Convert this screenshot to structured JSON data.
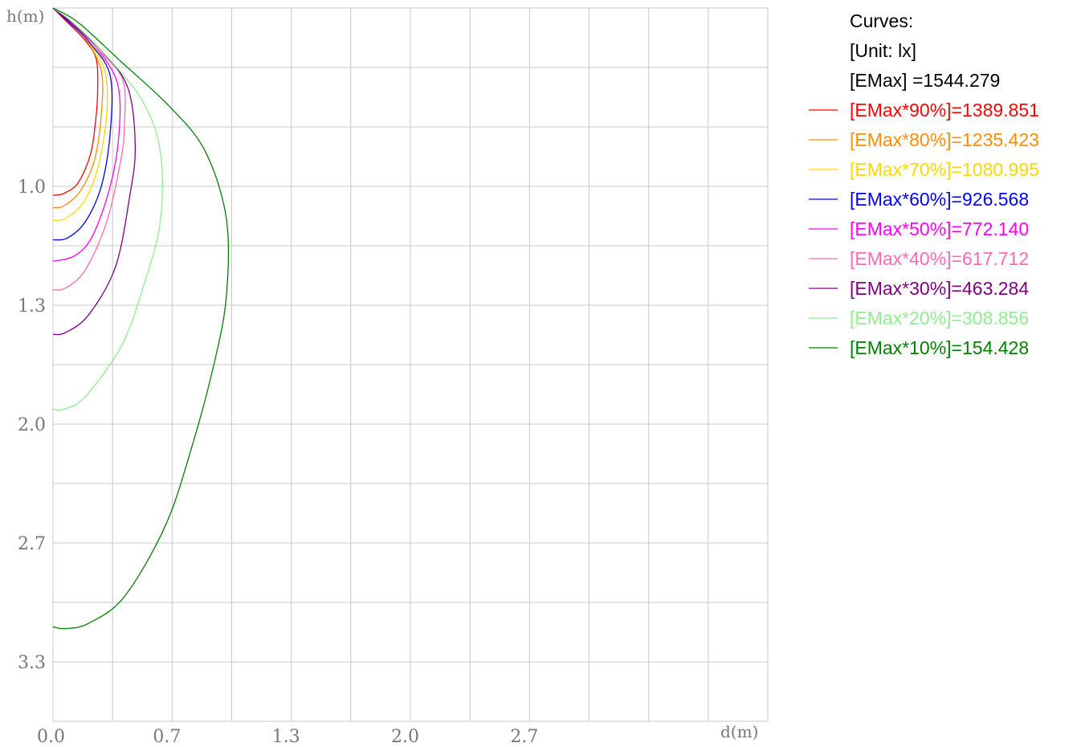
{
  "chart_data": {
    "type": "line",
    "xlabel": "d(m)",
    "ylabel": "h(m)",
    "xlim": [
      0,
      4.0
    ],
    "ylim": [
      0,
      4.0
    ],
    "x_ticks": [
      "0.0",
      "0.7",
      "1.3",
      "2.0",
      "2.7"
    ],
    "y_ticks": [
      "1.0",
      "1.3",
      "2.0",
      "2.7",
      "3.3"
    ],
    "grid": true,
    "legend_placement": "right",
    "legend": {
      "title": "Curves:",
      "unit": "[Unit: lx]",
      "emax": "[EMax]   =1544.279"
    },
    "series": [
      {
        "name": "[EMax*90%]=1389.851",
        "color": "#ff0000",
        "points": [
          [
            0.0,
            0.0
          ],
          [
            0.07,
            0.07
          ],
          [
            0.17,
            0.17
          ],
          [
            0.24,
            0.28
          ],
          [
            0.25,
            0.45
          ],
          [
            0.24,
            0.62
          ],
          [
            0.21,
            0.82
          ],
          [
            0.14,
            0.98
          ],
          [
            0.06,
            1.04
          ],
          [
            0.0,
            1.05
          ]
        ]
      },
      {
        "name": "[EMax*80%]=1235.423",
        "color": "#ff8c00",
        "points": [
          [
            0.0,
            0.0
          ],
          [
            0.08,
            0.07
          ],
          [
            0.18,
            0.17
          ],
          [
            0.27,
            0.35
          ],
          [
            0.27,
            0.6
          ],
          [
            0.23,
            0.86
          ],
          [
            0.15,
            1.03
          ],
          [
            0.06,
            1.11
          ],
          [
            0.0,
            1.12
          ]
        ]
      },
      {
        "name": "[EMax*70%]=1080.995",
        "color": "#ffd700",
        "points": [
          [
            0.0,
            0.0
          ],
          [
            0.08,
            0.07
          ],
          [
            0.19,
            0.18
          ],
          [
            0.29,
            0.35
          ],
          [
            0.3,
            0.6
          ],
          [
            0.25,
            0.9
          ],
          [
            0.17,
            1.09
          ],
          [
            0.07,
            1.18
          ],
          [
            0.0,
            1.19
          ]
        ]
      },
      {
        "name": "[EMax*60%]=926.568",
        "color": "#0000ff",
        "points": [
          [
            0.0,
            0.0
          ],
          [
            0.09,
            0.08
          ],
          [
            0.21,
            0.2
          ],
          [
            0.32,
            0.38
          ],
          [
            0.32,
            0.7
          ],
          [
            0.27,
            1.0
          ],
          [
            0.18,
            1.2
          ],
          [
            0.08,
            1.29
          ],
          [
            0.0,
            1.3
          ]
        ]
      },
      {
        "name": "[EMax*50%]=772.140",
        "color": "#ff00ff",
        "points": [
          [
            0.0,
            0.0
          ],
          [
            0.1,
            0.08
          ],
          [
            0.24,
            0.22
          ],
          [
            0.36,
            0.42
          ],
          [
            0.37,
            0.7
          ],
          [
            0.32,
            1.0
          ],
          [
            0.22,
            1.28
          ],
          [
            0.12,
            1.39
          ],
          [
            0.0,
            1.42
          ]
        ]
      },
      {
        "name": "[EMax*40%]=617.712",
        "color": "#ff69b4",
        "points": [
          [
            0.0,
            0.0
          ],
          [
            0.1,
            0.08
          ],
          [
            0.26,
            0.24
          ],
          [
            0.39,
            0.4
          ],
          [
            0.4,
            0.65
          ],
          [
            0.38,
            0.85
          ],
          [
            0.3,
            1.2
          ],
          [
            0.18,
            1.47
          ],
          [
            0.07,
            1.57
          ],
          [
            0.0,
            1.58
          ]
        ]
      },
      {
        "name": "[EMax*30%]=463.284",
        "color": "#800080",
        "points": [
          [
            0.0,
            0.0
          ],
          [
            0.1,
            0.08
          ],
          [
            0.28,
            0.25
          ],
          [
            0.42,
            0.45
          ],
          [
            0.46,
            0.78
          ],
          [
            0.43,
            1.05
          ],
          [
            0.35,
            1.45
          ],
          [
            0.2,
            1.72
          ],
          [
            0.07,
            1.82
          ],
          [
            0.0,
            1.83
          ]
        ]
      },
      {
        "name": "[EMax*20%]=308.856",
        "color": "#90ee90",
        "points": [
          [
            0.0,
            0.0
          ],
          [
            0.11,
            0.08
          ],
          [
            0.3,
            0.27
          ],
          [
            0.5,
            0.52
          ],
          [
            0.6,
            0.8
          ],
          [
            0.6,
            1.2
          ],
          [
            0.5,
            1.58
          ],
          [
            0.38,
            1.9
          ],
          [
            0.18,
            2.18
          ],
          [
            0.06,
            2.25
          ],
          [
            0.0,
            2.25
          ]
        ]
      },
      {
        "name": "[EMax*10%]=154.428",
        "color": "#008000",
        "points": [
          [
            0.0,
            0.0
          ],
          [
            0.14,
            0.08
          ],
          [
            0.38,
            0.3
          ],
          [
            0.65,
            0.55
          ],
          [
            0.85,
            0.8
          ],
          [
            0.97,
            1.18
          ],
          [
            0.97,
            1.62
          ],
          [
            0.9,
            2.0
          ],
          [
            0.78,
            2.45
          ],
          [
            0.63,
            2.9
          ],
          [
            0.4,
            3.3
          ],
          [
            0.2,
            3.45
          ],
          [
            0.07,
            3.48
          ],
          [
            0.0,
            3.47
          ]
        ]
      }
    ]
  }
}
